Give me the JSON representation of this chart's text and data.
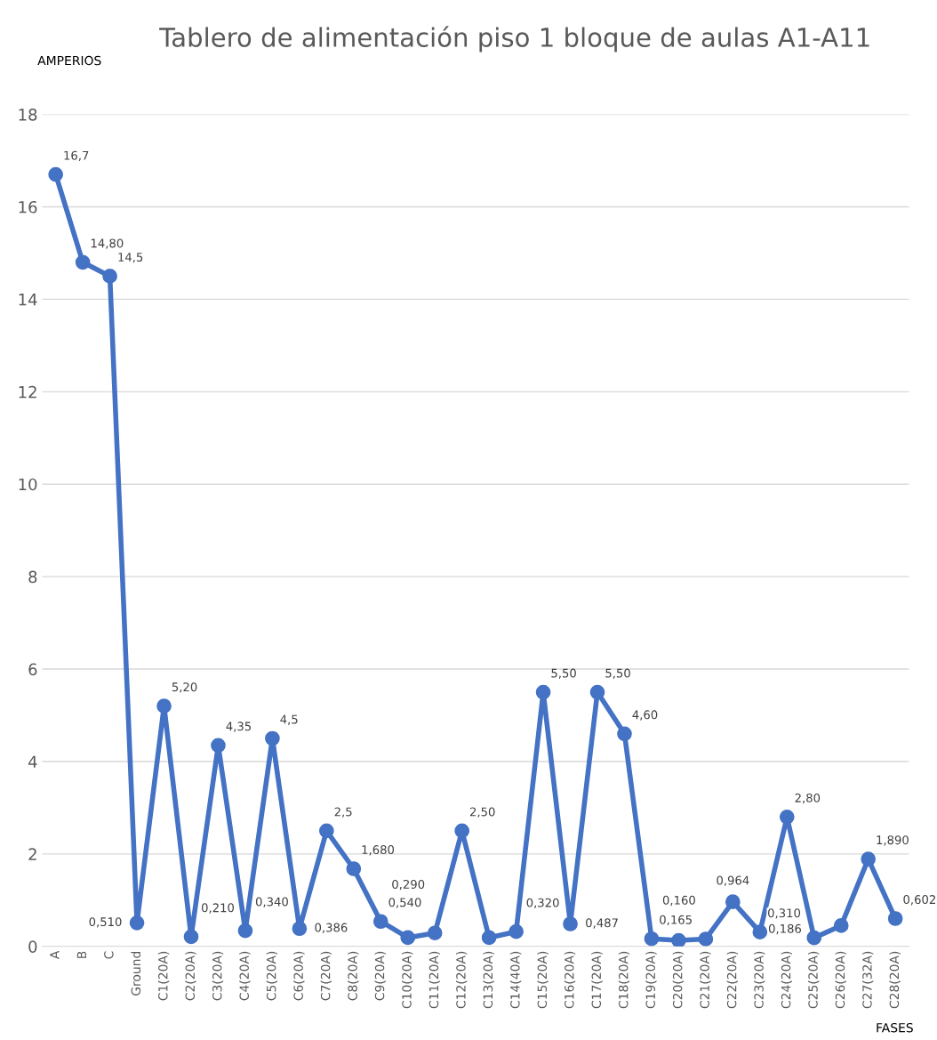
{
  "chart_data": {
    "type": "line",
    "title": "Tablero de alimentación piso 1 bloque de aulas A1-A11",
    "xlabel": "FASES",
    "ylabel": "AMPERIOS",
    "categories": [
      "A",
      "B",
      "C",
      "Ground",
      "C1(20A)",
      "C2(20A)",
      "C3(20A)",
      "C4(20A)",
      "C5(20A)",
      "C6(20A)",
      "C7(20A)",
      "C8(20A)",
      "C9(20A)",
      "C10(20A)",
      "C11(20A)",
      "C12(20A)",
      "C13(20A)",
      "C14(40A)",
      "C15(20A)",
      "C16(20A)",
      "C17(20A)",
      "C18(20A)",
      "C19(20A)",
      "C20(20A)",
      "C21(20A)",
      "C22(20A)",
      "C23(20A)",
      "C24(20A)",
      "C25(20A)",
      "C26(20A)",
      "C27(32A)",
      "C28(20A)"
    ],
    "series": [
      {
        "color": "#4472c4",
        "values": [
          16.7,
          14.8,
          14.5,
          0.51,
          5.2,
          0.21,
          4.35,
          0.34,
          4.5,
          0.386,
          2.5,
          1.68,
          0.54,
          0.19,
          0.29,
          2.5,
          0.19,
          0.32,
          5.5,
          0.487,
          5.5,
          4.6,
          0.165,
          0.13,
          0.16,
          0.964,
          0.31,
          2.8,
          0.186,
          0.45,
          1.89,
          0.602
        ],
        "value_labels": [
          "16,7",
          "14,80",
          "14,5",
          "0,510",
          "5,20",
          "0,210",
          "4,35",
          "0,340",
          "4,5",
          "0,386",
          "2,5",
          "1,680",
          "0,540",
          null,
          "0,290",
          "2,50",
          null,
          "0,320",
          "5,50",
          "0,487",
          "5,50",
          "4,60",
          "0,165",
          null,
          "0,160",
          "0,964",
          "0,310",
          "2,80",
          "0,186",
          null,
          "1,890",
          "0,602"
        ]
      }
    ],
    "ylim": [
      0,
      18
    ],
    "yticks": [
      0,
      2,
      4,
      6,
      8,
      10,
      12,
      14,
      16,
      18
    ],
    "grid": "y",
    "marker": "circle",
    "line_style": "solid",
    "legend": false
  }
}
